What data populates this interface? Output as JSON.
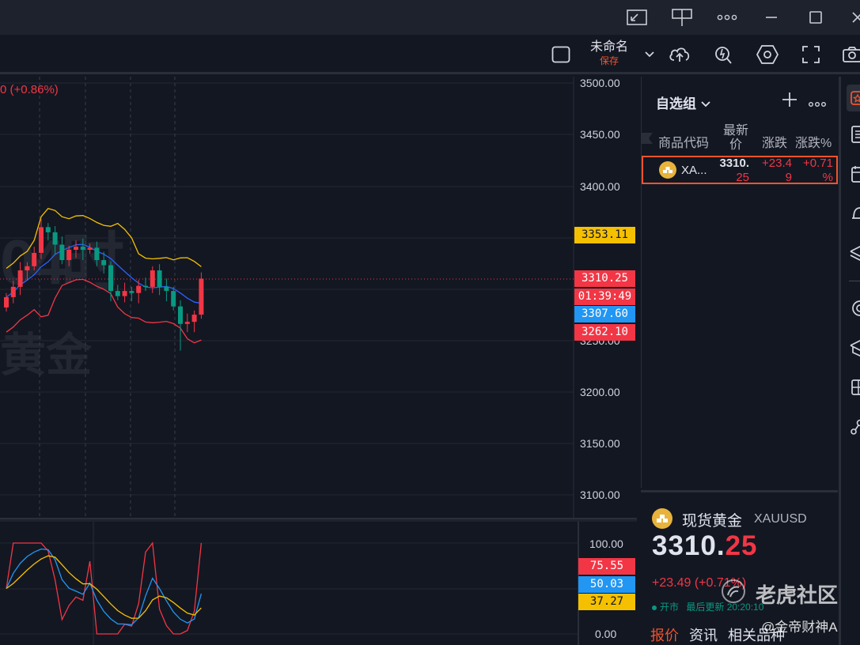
{
  "titlebar": {
    "icons": [
      "picture-in-picture-icon",
      "split-layout-icon",
      "more-icon",
      "minimize-icon",
      "maximize-icon",
      "close-icon"
    ]
  },
  "toolbar": {
    "layout_name": "未命名",
    "save_label": "保存",
    "icons": [
      "square-icon",
      "chevron-down-icon",
      "cloud-upload-icon",
      "alert-icon",
      "settings-icon",
      "fullscreen-icon",
      "camera-icon"
    ]
  },
  "chart": {
    "change_text": "0 (+0.86%)",
    "watermark_symbol": "04时",
    "watermark_name": "黄金",
    "price_axis": [
      "3500.00",
      "3450.00",
      "3400.00",
      "3300.00",
      "3250.00",
      "3200.00",
      "3150.00",
      "3100.00"
    ],
    "labels": {
      "upper_band": "3353.11",
      "last_price": "3310.25",
      "countdown": "01:39:49",
      "mid_band": "3307.60",
      "lower_band": "3262.10"
    },
    "osc_axis": [
      "100.00",
      "0.00"
    ],
    "osc_labels": {
      "k": "75.55",
      "d": "50.03",
      "j": "37.27"
    },
    "colors": {
      "up": "#f23645",
      "down": "#089981",
      "upper": "#f5c000",
      "mid": "#2962ff",
      "accent": "#f0542d"
    }
  },
  "chart_data": {
    "type": "candlestick",
    "title": "",
    "series": [
      {
        "name": "",
        "values": [
          3292,
          3302,
          3318,
          3322,
          3335,
          3360,
          3355,
          3343,
          3328,
          3338,
          3341,
          3338,
          3340,
          3328,
          3323,
          3298,
          3293,
          3298,
          3296,
          3303,
          3302,
          3318,
          3302,
          3298,
          3283,
          3266,
          3268,
          3275,
          3310
        ]
      }
    ],
    "ylim": [
      3100,
      3500
    ],
    "oscillator": {
      "k": 75.55,
      "d": 50.03,
      "j": 37.27,
      "ylim": [
        0,
        100
      ]
    }
  },
  "watchlist": {
    "title": "自选组",
    "columns": [
      "商品代码",
      "最新价",
      "涨跌",
      "涨跌%"
    ],
    "rows": [
      {
        "symbol": "XA...",
        "last_line1": "3310.",
        "last_line2": "25",
        "chg_line1": "+23.4",
        "chg_line2": "9",
        "pct_line1": "+0.71",
        "pct_line2": "%"
      }
    ]
  },
  "details": {
    "name": "现货黄金",
    "symbol": "XAUUSD",
    "price_main": "3310.",
    "price_frac": "25",
    "change": "+23.49 (+0.71%)",
    "status": "开市",
    "updated": "最后更新 20:20:10",
    "tabs": [
      "报价",
      "资讯",
      "相关品种"
    ]
  },
  "overlay": {
    "brand": "老虎社区",
    "author": "@金帝财神A"
  }
}
